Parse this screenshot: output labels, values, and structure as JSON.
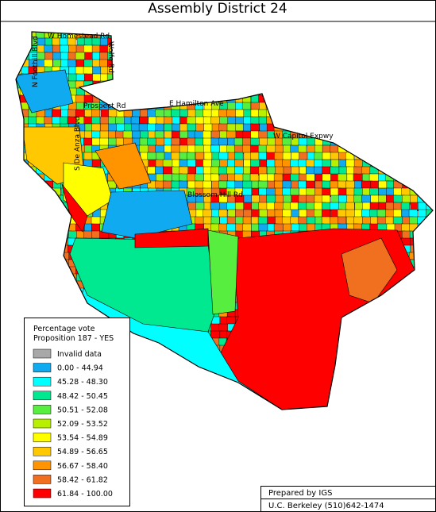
{
  "title": "Assembly District 24",
  "roads": [
    "W Homestead Rd",
    "Wolfe Rd",
    "N Foothill Blvd",
    "S De Anza Blvd",
    "Prospect Rd",
    "E Hamilton Ave",
    "W Capitol Expwy",
    "Blossom Hill Rd"
  ],
  "legend": {
    "title": [
      "Percentage vote",
      "Proposition 187 - YES"
    ],
    "items": [
      {
        "label": "Invalid data",
        "color": "#a8a8a8"
      },
      {
        "label": "0.00 - 44.94",
        "color": "#10aaf0"
      },
      {
        "label": "45.28 - 48.30",
        "color": "#00ffff"
      },
      {
        "label": "48.42 - 50.45",
        "color": "#00e890"
      },
      {
        "label": "50.51 - 52.08",
        "color": "#58ee40"
      },
      {
        "label": "52.09 - 53.52",
        "color": "#b8f000"
      },
      {
        "label": "53.54 - 54.89",
        "color": "#ffff00"
      },
      {
        "label": "54.89 - 56.65",
        "color": "#ffc800"
      },
      {
        "label": "56.67 - 58.40",
        "color": "#ff9400"
      },
      {
        "label": "58.42 - 61.82",
        "color": "#f07020"
      },
      {
        "label": "61.84 - 100.00",
        "color": "#ff0000"
      }
    ]
  },
  "credits": [
    "Prepared by IGS",
    "U.C. Berkeley (510)642-1474"
  ]
}
